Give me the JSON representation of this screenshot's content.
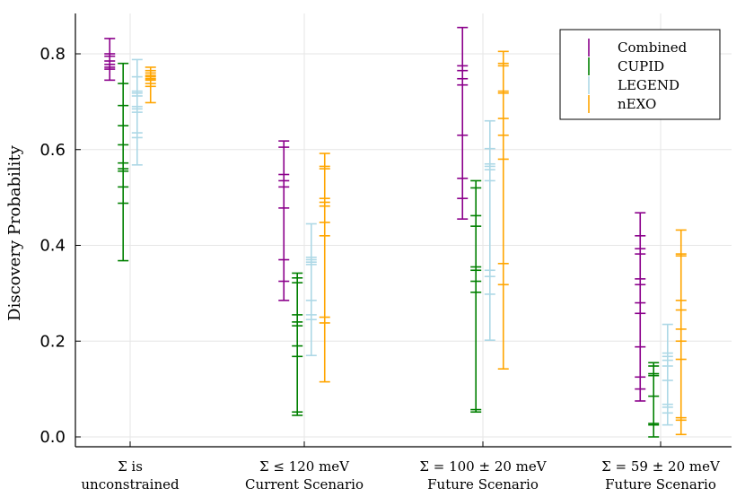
{
  "chart_data": {
    "type": "errorbar-ticks",
    "title": "",
    "xlabel": "",
    "ylabel": "Discovery Probability",
    "ylim": [
      0.0,
      0.88
    ],
    "yticks": [
      "0.0",
      "0.2",
      "0.4",
      "0.6",
      "0.8"
    ],
    "ytick_values": [
      0.0,
      0.2,
      0.4,
      0.6,
      0.8
    ],
    "grid": true,
    "legend_position": "top-right",
    "categories": [
      {
        "line1": "Σ is",
        "line2": "unconstrained"
      },
      {
        "line1": "Σ ≤ 120 meV",
        "line2": "Current Scenario"
      },
      {
        "line1": "Σ = 100 ± 20 meV",
        "line2": "Future Scenario"
      },
      {
        "line1": "Σ = 59 ± 20 meV",
        "line2": "Future Scenario"
      }
    ],
    "series": [
      {
        "name": "Combined",
        "color": "#8b008b",
        "offset": -0.35,
        "groups": [
          {
            "min": 0.745,
            "max": 0.832,
            "ticks": [
              0.745,
              0.768,
              0.772,
              0.778,
              0.785,
              0.795,
              0.8,
              0.832
            ]
          },
          {
            "min": 0.285,
            "max": 0.618,
            "ticks": [
              0.285,
              0.325,
              0.37,
              0.478,
              0.522,
              0.535,
              0.548,
              0.605,
              0.618
            ]
          },
          {
            "min": 0.455,
            "max": 0.855,
            "ticks": [
              0.455,
              0.498,
              0.54,
              0.63,
              0.735,
              0.748,
              0.765,
              0.775,
              0.855
            ]
          },
          {
            "min": 0.075,
            "max": 0.468,
            "ticks": [
              0.075,
              0.1,
              0.125,
              0.188,
              0.258,
              0.28,
              0.318,
              0.33,
              0.382,
              0.393,
              0.42,
              0.468
            ]
          }
        ]
      },
      {
        "name": "CUPID",
        "color": "#008000",
        "offset": -0.12,
        "groups": [
          {
            "min": 0.368,
            "max": 0.78,
            "ticks": [
              0.368,
              0.488,
              0.522,
              0.555,
              0.56,
              0.572,
              0.61,
              0.65,
              0.692,
              0.738,
              0.78
            ]
          },
          {
            "min": 0.045,
            "max": 0.342,
            "ticks": [
              0.045,
              0.052,
              0.168,
              0.19,
              0.232,
              0.24,
              0.255,
              0.322,
              0.332,
              0.342
            ]
          },
          {
            "min": 0.052,
            "max": 0.535,
            "ticks": [
              0.052,
              0.057,
              0.302,
              0.325,
              0.348,
              0.355,
              0.44,
              0.462,
              0.52,
              0.535
            ]
          },
          {
            "min": 0.0,
            "max": 0.155,
            "ticks": [
              0.0,
              0.025,
              0.028,
              0.085,
              0.128,
              0.132,
              0.148,
              0.155
            ]
          }
        ]
      },
      {
        "name": "LEGEND",
        "color": "#add8e6",
        "offset": 0.12,
        "groups": [
          {
            "min": 0.568,
            "max": 0.788,
            "ticks": [
              0.568,
              0.625,
              0.635,
              0.678,
              0.685,
              0.69,
              0.712,
              0.718,
              0.722,
              0.752,
              0.788
            ]
          },
          {
            "min": 0.17,
            "max": 0.445,
            "ticks": [
              0.17,
              0.245,
              0.255,
              0.285,
              0.36,
              0.365,
              0.37,
              0.375,
              0.445
            ]
          },
          {
            "min": 0.202,
            "max": 0.66,
            "ticks": [
              0.202,
              0.298,
              0.335,
              0.348,
              0.535,
              0.558,
              0.565,
              0.57,
              0.602,
              0.66
            ]
          },
          {
            "min": 0.025,
            "max": 0.235,
            "ticks": [
              0.025,
              0.05,
              0.062,
              0.068,
              0.118,
              0.148,
              0.16,
              0.168,
              0.175,
              0.235
            ]
          }
        ]
      },
      {
        "name": "nEXO",
        "color": "#ffa500",
        "offset": 0.35,
        "groups": [
          {
            "min": 0.698,
            "max": 0.772,
            "ticks": [
              0.698,
              0.732,
              0.738,
              0.745,
              0.748,
              0.752,
              0.755,
              0.76,
              0.765,
              0.772
            ]
          },
          {
            "min": 0.115,
            "max": 0.592,
            "ticks": [
              0.115,
              0.238,
              0.25,
              0.42,
              0.448,
              0.482,
              0.49,
              0.498,
              0.56,
              0.565,
              0.592
            ]
          },
          {
            "min": 0.142,
            "max": 0.805,
            "ticks": [
              0.142,
              0.318,
              0.362,
              0.58,
              0.63,
              0.665,
              0.718,
              0.722,
              0.775,
              0.78,
              0.805
            ]
          },
          {
            "min": 0.005,
            "max": 0.432,
            "ticks": [
              0.005,
              0.035,
              0.04,
              0.162,
              0.2,
              0.225,
              0.265,
              0.285,
              0.378,
              0.382,
              0.432
            ]
          }
        ]
      }
    ]
  }
}
